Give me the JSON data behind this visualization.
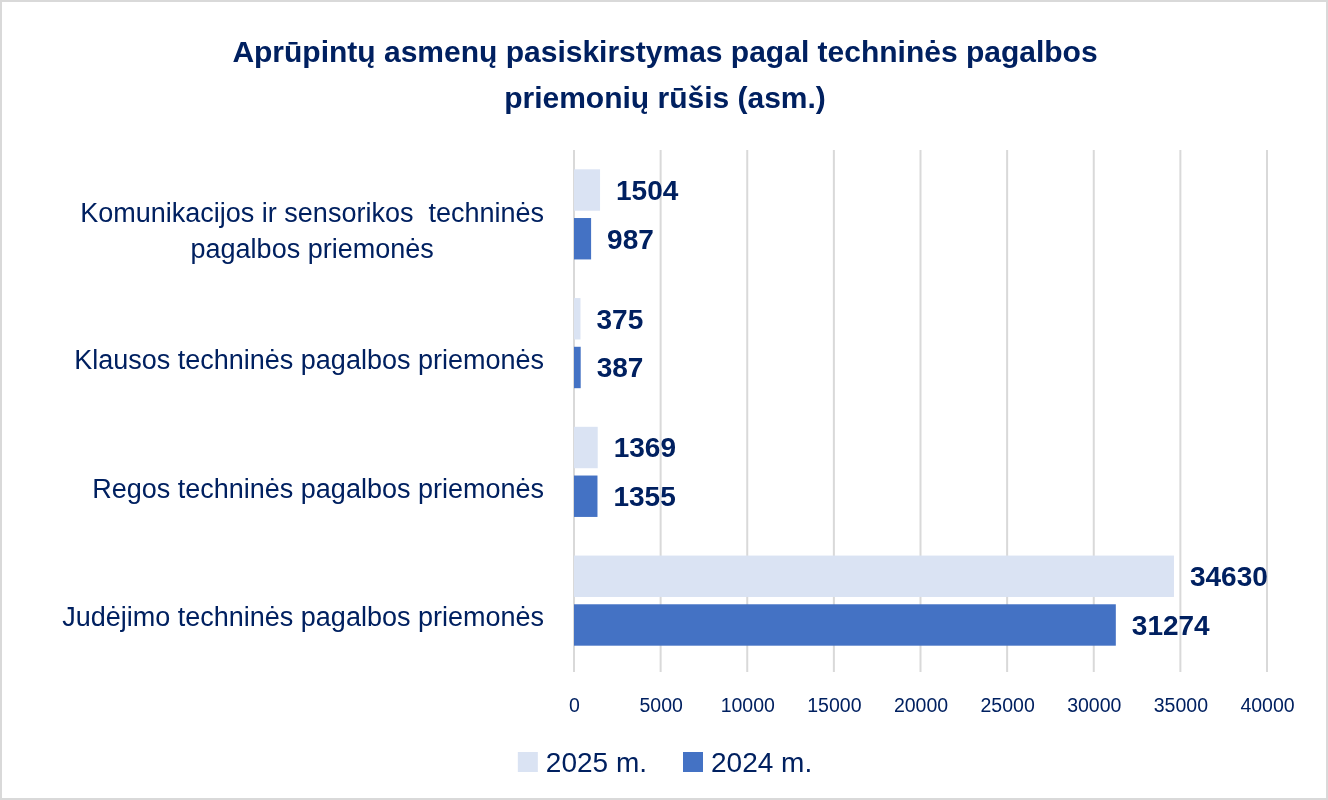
{
  "chart_data": {
    "type": "bar",
    "orientation": "horizontal",
    "title": "Aprūpintų asmenų pasiskirstymas pagal techninės pagalbos priemonių rūšis (asm.)",
    "categories": [
      "Komunikacijos ir sensorikos  techninės pagalbos priemonės",
      "Klausos techninės pagalbos priemonės",
      "Regos techninės pagalbos priemonės",
      "Judėjimo techninės pagalbos priemonės"
    ],
    "series": [
      {
        "name": "2025 m.",
        "color": "#dae3f3",
        "values": [
          1504,
          375,
          1369,
          34630
        ]
      },
      {
        "name": "2024 m.",
        "color": "#4472c4",
        "values": [
          987,
          387,
          1355,
          31274
        ]
      }
    ],
    "xlim": [
      0,
      40000
    ],
    "xticks": [
      0,
      5000,
      10000,
      15000,
      20000,
      25000,
      30000,
      35000,
      40000
    ],
    "grid": "x",
    "legend": "bottom",
    "data_labels": true
  }
}
